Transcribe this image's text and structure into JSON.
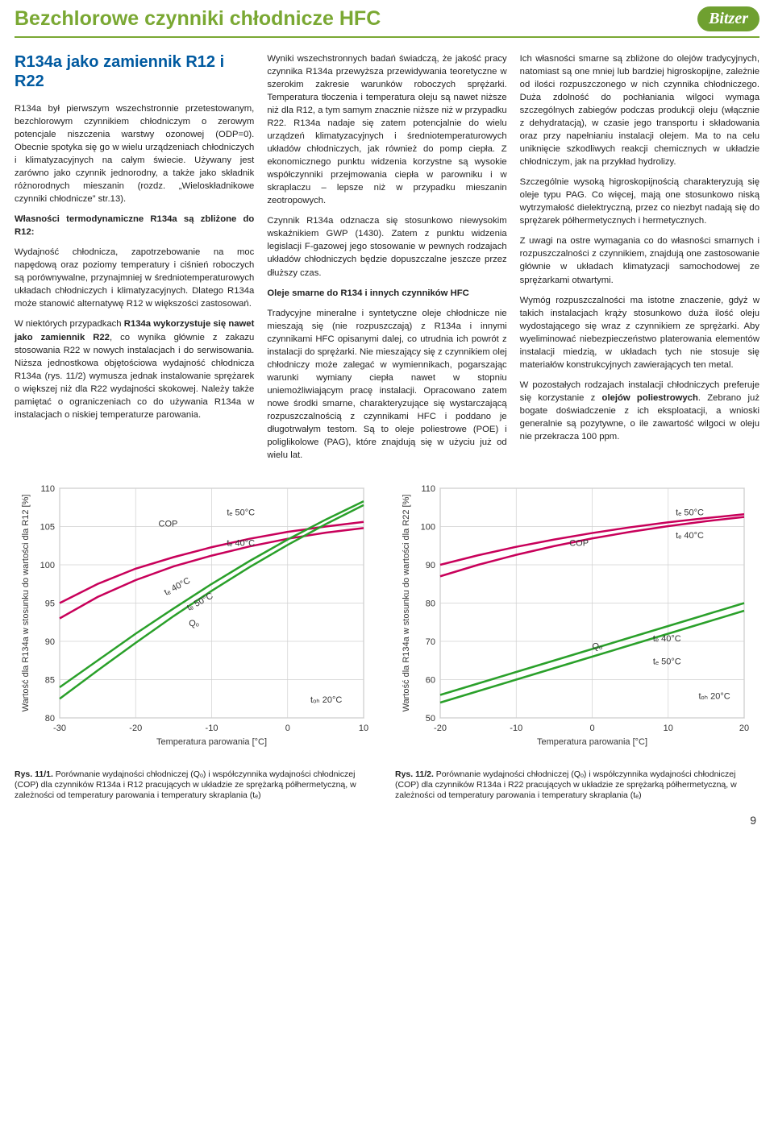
{
  "header": {
    "title": "Bezchlorowe czynniki chłodnicze HFC",
    "logo_text": "Bitzer",
    "title_color": "#7aa833",
    "rule_color": "#7aa833"
  },
  "section": {
    "heading": "R134a jako zamiennik R12 i R22",
    "col1": {
      "p1": "R134a był pierwszym wszechstronnie przetestowanym, bezchlorowym czynnikiem chłodniczym o zerowym potencjale niszczenia warstwy ozonowej (ODP=0). Obecnie spotyka się go w wielu urządzeniach chłodniczych i klimatyzacyjnych na całym świecie. Używany jest zarówno jako czynnik jednorodny, a także jako składnik różnorodnych mieszanin (rozdz. „Wieloskładnikowe czynniki chłodnicze” str.13).",
      "p2_b": "Własności termodynamiczne R134a są zbliżone do R12:",
      "p3": "Wydajność chłodnicza, zapotrzebowanie na moc napędową oraz poziomy temperatury i ciśnień roboczych są porównywalne, przynajmniej w średniotemperaturowych układach chłodniczych i klimatyzacyjnych. Dlatego R134a może stanowić alternatywę R12 w większości zastosowań.",
      "p4a": "W niektórych przypadkach ",
      "p4b": "R134a wykorzystuje się nawet jako zamiennik R22",
      "p4c": ", co wynika głównie z zakazu stosowania R22 w nowych instalacjach i do serwisowania. Niższa jednostkowa objętościowa wydajność chłodnicza R134a (rys. 11/2) wymusza jednak instalowanie sprężarek o większej niż dla R22 wydajności skokowej. Należy także pamiętać o ograniczeniach co do używania R134a w instalacjach o niskiej temperaturze parowania."
    },
    "col2": {
      "p1": "Wyniki wszechstronnych badań świadczą, że jakość pracy czynnika R134a przewyższa przewidywania teoretyczne w szerokim zakresie warunków roboczych sprężarki. Temperatura tłoczenia i temperatura oleju są nawet niższe niż dla R12, a tym samym znacznie niższe niż w przypadku R22. R134a nadaje się zatem potencjalnie do wielu urządzeń klimatyzacyjnych i średniotemperaturowych układów chłodniczych, jak również do pomp ciepła. Z ekonomicznego punktu widzenia korzystne są wysokie współczynniki przejmowania ciepła w parowniku i w skraplaczu – lepsze niż w przypadku mieszanin zeotropowych.",
      "p2": "Czynnik R134a odznacza się stosunkowo niewysokim wskaźnikiem GWP (1430). Zatem z punktu widzenia legislacji F-gazowej jego stosowanie w pewnych rodzajach układów chłodniczych będzie dopuszczalne jeszcze przez dłuższy czas.",
      "p3_b": "Oleje smarne do R134 i innych czynników HFC",
      "p4": "Tradycyjne mineralne i syntetyczne oleje chłodnicze nie mieszają się (nie rozpuszczają) z R134a i innymi czynnikami HFC opisanymi dalej, co utrudnia ich powrót z instalacji do sprężarki. Nie mieszający się z czynnikiem olej chłodniczy może zalegać w wymiennikach, pogarszając warunki wymiany ciepła nawet w stopniu uniemożliwiającym pracę instalacji. Opracowano zatem nowe środki smarne, charakteryzujące się wystarczającą rozpuszczalnością z czynnikami HFC i poddano je długotrwałym testom. Są to oleje poliestrowe (POE) i poliglikolowe (PAG), które znajdują się w użyciu już od wielu lat."
    },
    "col3": {
      "p1": "Ich własności smarne są zbliżone do olejów tradycyjnych, natomiast są one mniej lub bardziej higroskopijne, zależnie od ilości rozpuszczonego w nich czynnika chłodniczego. Duża zdolność do pochłaniania wilgoci wymaga szczególnych zabiegów podczas produkcji oleju (włącznie z dehydratacją), w czasie jego transportu i składowania oraz przy napełnianiu instalacji olejem. Ma to na celu uniknięcie szkodliwych reakcji chemicznych w układzie chłodniczym, jak na przykład hydrolizy.",
      "p2": "Szczególnie wysoką higroskopijnością charakteryzują się oleje typu PAG. Co więcej, mają one stosunkowo niską wytrzymałość dielektryczną, przez co niezbyt nadają się do sprężarek półhermetycznych i hermetycznych.",
      "p3": "Z uwagi na ostre wymagania co do własności smarnych i rozpuszczalności z czynnikiem, znajdują one zastosowanie głównie w układach klimatyzacji samochodowej ze sprężarkami otwartymi.",
      "p4": "Wymóg rozpuszczalności ma istotne znaczenie, gdyż w takich instalacjach krąży stosunkowo duża ilość oleju wydostającego się wraz z czynnikiem ze sprężarki. Aby wyeliminować niebezpieczeństwo platerowania elementów instalacji miedzią, w układach tych nie stosuje się materiałów konstrukcyjnych zawierających ten metal.",
      "p5a": "W pozostałych rodzajach instalacji chłodniczych preferuje się korzystanie z ",
      "p5b": "olejów poliestrowych",
      "p5c": ". Zebrano już bogate doświadczenie z ich eksploatacji, a wnioski generalnie są pozytywne, o ile zawartość wilgoci w oleju nie przekracza 100 ppm."
    }
  },
  "chart1": {
    "type": "line",
    "y_label": "Wartość dla R134a w stosunku do wartości dla R12 [%]",
    "x_label": "Temperatura parowania [°C]",
    "ylim": [
      80,
      110
    ],
    "ytick_step": 5,
    "xlim": [
      -30,
      10
    ],
    "xtick_step": 10,
    "grid_color": "#d0d0d0",
    "background_color": "#ffffff",
    "series": {
      "cop_50": {
        "color": "#c8005a",
        "width": 2.5,
        "label": "COP",
        "line_label_tc": "tₑ 50°C",
        "x": [
          -30,
          -25,
          -20,
          -15,
          -10,
          -5,
          0,
          5,
          10
        ],
        "y": [
          95,
          97.5,
          99.5,
          101,
          102.3,
          103.4,
          104.3,
          105,
          105.6
        ]
      },
      "cop_40": {
        "color": "#c8005a",
        "width": 2.5,
        "line_label_tc": "tₑ 40°C",
        "x": [
          -30,
          -25,
          -20,
          -15,
          -10,
          -5,
          0,
          5,
          10
        ],
        "y": [
          93,
          95.8,
          98,
          99.8,
          101.2,
          102.4,
          103.4,
          104.2,
          104.8
        ]
      },
      "q_40": {
        "color": "#2aa02a",
        "width": 2.5,
        "label": "Qₒ",
        "line_label_tc": "tₑ 40°C",
        "x": [
          -30,
          -25,
          -20,
          -15,
          -10,
          -5,
          0,
          5,
          10
        ],
        "y": [
          84,
          87.5,
          91,
          94.3,
          97.5,
          100.5,
          103.3,
          105.9,
          108.3
        ]
      },
      "q_50": {
        "color": "#2aa02a",
        "width": 2.5,
        "line_label_tc": "tₑ 50°C",
        "x": [
          -30,
          -25,
          -20,
          -15,
          -10,
          -5,
          0,
          5,
          10
        ],
        "y": [
          82.5,
          86.2,
          89.8,
          93.3,
          96.6,
          99.7,
          102.6,
          105.3,
          107.8
        ]
      }
    },
    "annotations": {
      "cop": "COP",
      "q": "Qₒ",
      "tc50": "tₑ 50°C",
      "tc40": "tₑ 40°C",
      "toh20": "tₒₕ 20°C"
    },
    "caption_no": "Rys. 11/1.",
    "caption": "Porównanie wydajności chłodniczej (Qₒ) i współczynnika wydajności chłodniczej (COP) dla czynników R134a i R12 pracujących w układzie ze sprężarką półhermetyczną, w zależności od temperatury parowania i temperatury skraplania (tₑ)"
  },
  "chart2": {
    "type": "line",
    "y_label": "Wartość dla R134a w stosunku do wartości dla R22 [%]",
    "x_label": "Temperatura parowania [°C]",
    "ylim": [
      50,
      110
    ],
    "ytick_step": 10,
    "xlim": [
      -20,
      20
    ],
    "xtick_step": 10,
    "grid_color": "#d0d0d0",
    "background_color": "#ffffff",
    "series": {
      "cop_50": {
        "color": "#c8005a",
        "width": 2.5,
        "label": "COP",
        "line_label_tc": "tₑ 50°C",
        "x": [
          -20,
          -15,
          -10,
          -5,
          0,
          5,
          10,
          15,
          20
        ],
        "y": [
          90,
          92.5,
          94.7,
          96.6,
          98.3,
          99.8,
          101.1,
          102.2,
          103.2
        ]
      },
      "cop_40": {
        "color": "#c8005a",
        "width": 2.5,
        "line_label_tc": "tₑ 40°C",
        "x": [
          -20,
          -15,
          -10,
          -5,
          0,
          5,
          10,
          15,
          20
        ],
        "y": [
          87,
          90,
          92.6,
          94.9,
          96.9,
          98.6,
          100.1,
          101.4,
          102.5
        ]
      },
      "q_40": {
        "color": "#2aa02a",
        "width": 2.5,
        "label": "Qₒ",
        "line_label_tc": "tₑ 40°C",
        "x": [
          -20,
          -15,
          -10,
          -5,
          0,
          5,
          10,
          15,
          20
        ],
        "y": [
          56,
          59,
          62,
          65,
          68,
          71,
          74,
          77,
          80
        ]
      },
      "q_50": {
        "color": "#2aa02a",
        "width": 2.5,
        "line_label_tc": "tₑ 50°C",
        "x": [
          -20,
          -15,
          -10,
          -5,
          0,
          5,
          10,
          15,
          20
        ],
        "y": [
          54,
          57,
          60,
          63,
          66,
          69,
          72,
          75,
          78
        ]
      }
    },
    "annotations": {
      "cop": "COP",
      "q": "Qₒ",
      "tc50": "tₑ 50°C",
      "tc40": "tₑ 40°C",
      "toh20": "tₒₕ 20°C"
    },
    "caption_no": "Rys. 11/2.",
    "caption": "Porównanie wydajności chłodniczej (Qₒ) i współczynnika wydajności chłodniczej (COP) dla czynników R134a i R22 pracujących w układzie ze sprężarką półhermetyczną, w zależności od temperatury parowania i temperatury skraplania (tₑ)"
  },
  "page_number": "9"
}
